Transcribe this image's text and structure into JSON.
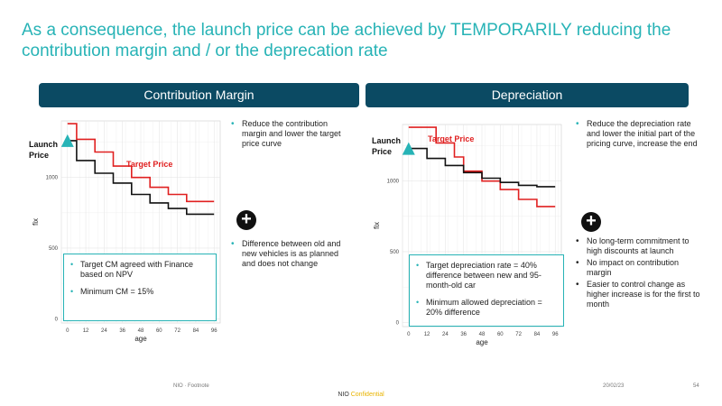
{
  "title": "As a consequence, the launch price can be achieved by TEMPORARILY reducing the contribution margin and / or the deprecation rate",
  "left": {
    "header": "Contribution Margin",
    "launch_label": "Launch Price",
    "target_label": "Target Price",
    "bullets_top": [
      "Reduce the contribution margin and lower the target price curve"
    ],
    "bullets_bottom": [
      "Difference between old and new vehicles is as planned and does not change"
    ],
    "callout": [
      "Target CM agreed with Finance based on NPV",
      "Minimum CM = 15%"
    ]
  },
  "right": {
    "header": "Depreciation",
    "launch_label": "Launch Price",
    "target_label": "Target Price",
    "bullets_top": [
      "Reduce the depreciation rate and lower the initial part of the pricing curve, increase the end"
    ],
    "bullets_bottom": [
      "No long-term commitment to high discounts at launch",
      "No impact on contribution margin",
      "Easier to control change as higher increase is for the first to month"
    ],
    "callout": [
      "Target depreciation rate = 40% difference between new and 95-month-old car",
      "Minimum allowed depreciation = 20% difference"
    ]
  },
  "footer": {
    "left": "NIO · Footnote",
    "date": "20/02/23",
    "page": "54",
    "brand": "NIO",
    "confidential": "Confidential"
  },
  "chart_data": [
    {
      "type": "line",
      "xlabel": "age",
      "ylabel": "fix",
      "x_ticks": [
        0,
        12,
        24,
        36,
        48,
        60,
        72,
        84,
        96
      ],
      "y_ticks": [
        0,
        500,
        1000
      ],
      "xlim": [
        -4,
        100
      ],
      "ylim": [
        -30,
        1400
      ],
      "series": [
        {
          "color": "#e02020",
          "points": [
            [
              0,
              1380
            ],
            [
              6,
              1380
            ],
            [
              6,
              1270
            ],
            [
              18,
              1270
            ],
            [
              18,
              1180
            ],
            [
              30,
              1180
            ],
            [
              30,
              1080
            ],
            [
              42,
              1080
            ],
            [
              42,
              1000
            ],
            [
              54,
              1000
            ],
            [
              54,
              930
            ],
            [
              66,
              930
            ],
            [
              66,
              880
            ],
            [
              78,
              880
            ],
            [
              78,
              830
            ],
            [
              90,
              830
            ],
            [
              90,
              830
            ],
            [
              96,
              830
            ]
          ]
        },
        {
          "color": "#111111",
          "points": [
            [
              0,
              1260
            ],
            [
              6,
              1260
            ],
            [
              6,
              1120
            ],
            [
              18,
              1120
            ],
            [
              18,
              1030
            ],
            [
              30,
              1030
            ],
            [
              30,
              960
            ],
            [
              42,
              960
            ],
            [
              42,
              880
            ],
            [
              54,
              880
            ],
            [
              54,
              820
            ],
            [
              66,
              820
            ],
            [
              66,
              780
            ],
            [
              78,
              780
            ],
            [
              78,
              740
            ],
            [
              90,
              740
            ],
            [
              96,
              740
            ]
          ]
        }
      ]
    },
    {
      "type": "line",
      "xlabel": "age",
      "ylabel": "fix",
      "x_ticks": [
        0,
        12,
        24,
        36,
        48,
        60,
        72,
        84,
        96
      ],
      "y_ticks": [
        0,
        500,
        1000
      ],
      "xlim": [
        -4,
        100
      ],
      "ylim": [
        -30,
        1400
      ],
      "series": [
        {
          "color": "#e02020",
          "points": [
            [
              0,
              1380
            ],
            [
              18,
              1380
            ],
            [
              18,
              1270
            ],
            [
              30,
              1270
            ],
            [
              30,
              1170
            ],
            [
              36,
              1170
            ],
            [
              36,
              1070
            ],
            [
              48,
              1070
            ],
            [
              48,
              1000
            ],
            [
              60,
              1000
            ],
            [
              60,
              940
            ],
            [
              72,
              940
            ],
            [
              72,
              870
            ],
            [
              84,
              870
            ],
            [
              84,
              820
            ],
            [
              96,
              820
            ]
          ]
        },
        {
          "color": "#111111",
          "points": [
            [
              0,
              1230
            ],
            [
              12,
              1230
            ],
            [
              12,
              1160
            ],
            [
              24,
              1160
            ],
            [
              24,
              1110
            ],
            [
              36,
              1110
            ],
            [
              36,
              1060
            ],
            [
              48,
              1060
            ],
            [
              48,
              1020
            ],
            [
              60,
              1020
            ],
            [
              60,
              990
            ],
            [
              72,
              990
            ],
            [
              72,
              970
            ],
            [
              84,
              970
            ],
            [
              84,
              960
            ],
            [
              96,
              960
            ]
          ]
        }
      ]
    }
  ]
}
